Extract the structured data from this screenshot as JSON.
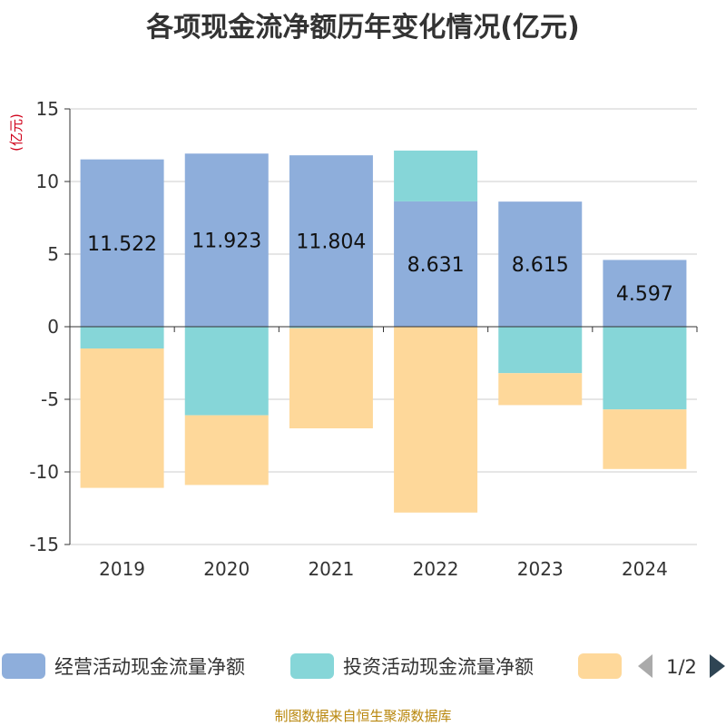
{
  "title": "各项现金流净额历年变化情况(亿元)",
  "source": "制图数据来自恒生聚源数据库",
  "pager": "1/2",
  "colors": {
    "operating": "#8eaedb",
    "investing": "#86d6d8",
    "financing": "#fed89a",
    "axis": "#333333",
    "grid": "#cccccc",
    "unit": "#d0021b"
  },
  "chart_data": {
    "type": "bar",
    "stacked": true,
    "ylabel": "(亿元)",
    "ylim": [
      -15,
      15
    ],
    "yticks": [
      "15",
      "10",
      "5",
      "0",
      "-5",
      "-10",
      "-15"
    ],
    "ytick_values": [
      15,
      10,
      5,
      0,
      -5,
      -10,
      -15
    ],
    "categories": [
      "2019",
      "2020",
      "2021",
      "2022",
      "2023",
      "2024"
    ],
    "series": [
      {
        "name": "经营活动现金流量净额",
        "values": [
          11.522,
          11.923,
          11.804,
          8.631,
          8.615,
          4.597
        ],
        "labels": [
          "11.522",
          "11.923",
          "11.804",
          "8.631",
          "8.615",
          "4.597"
        ]
      },
      {
        "name": "投资活动现金流量净额",
        "values": [
          -1.5,
          -6.1,
          -0.1,
          3.5,
          -3.2,
          -5.7
        ]
      },
      {
        "name": "",
        "values": [
          -9.6,
          -4.8,
          -6.9,
          -12.8,
          -2.2,
          -4.1
        ]
      }
    ],
    "legend_position": "bottom",
    "grid": true
  }
}
